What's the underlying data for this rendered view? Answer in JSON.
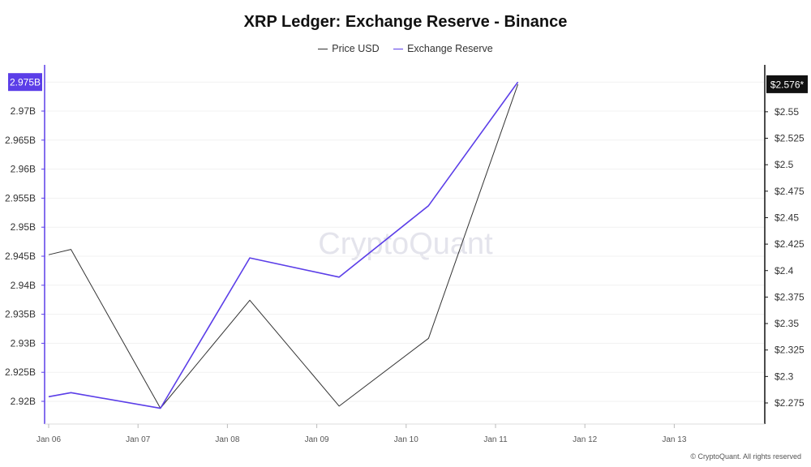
{
  "chart_data": {
    "type": "line",
    "title": "XRP Ledger: Exchange Reserve - Binance",
    "x": [
      "Jan 06",
      "Jan 07",
      "Jan 08",
      "Jan 09",
      "Jan 10",
      "Jan 11",
      "Jan 12",
      "Jan 13"
    ],
    "series": [
      {
        "name": "Price USD",
        "axis": "right",
        "color": "#333333",
        "points": [
          {
            "x": "2025-01-06 00:00",
            "y": 2.415
          },
          {
            "x": "2025-01-06 06:00",
            "y": 2.42
          },
          {
            "x": "2025-01-07 06:00",
            "y": 2.27
          },
          {
            "x": "2025-01-08 06:00",
            "y": 2.372
          },
          {
            "x": "2025-01-09 06:00",
            "y": 2.272
          },
          {
            "x": "2025-01-10 06:00",
            "y": 2.336
          },
          {
            "x": "2025-01-11 06:00",
            "y": 2.576
          }
        ]
      },
      {
        "name": "Exchange Reserve",
        "axis": "left",
        "color": "#5b3ee8",
        "points": [
          {
            "x": "2025-01-06 00:00",
            "y": 2.9208
          },
          {
            "x": "2025-01-06 06:00",
            "y": 2.9215
          },
          {
            "x": "2025-01-07 06:00",
            "y": 2.9188
          },
          {
            "x": "2025-01-08 06:00",
            "y": 2.9447
          },
          {
            "x": "2025-01-09 06:00",
            "y": 2.9414
          },
          {
            "x": "2025-01-10 06:00",
            "y": 2.9537
          },
          {
            "x": "2025-01-11 06:00",
            "y": 2.975
          }
        ]
      }
    ],
    "y_left": {
      "unit": "B",
      "ticks": [
        "2.92B",
        "2.925B",
        "2.93B",
        "2.935B",
        "2.94B",
        "2.945B",
        "2.95B",
        "2.955B",
        "2.96B",
        "2.965B",
        "2.97B",
        "2.975B"
      ],
      "tick_values": [
        2.92,
        2.925,
        2.93,
        2.935,
        2.94,
        2.945,
        2.95,
        2.955,
        2.96,
        2.965,
        2.97,
        2.975
      ],
      "current_label": "2.975B",
      "color": "#5b3ee8"
    },
    "y_right": {
      "ticks": [
        "$2.275",
        "$2.3",
        "$2.325",
        "$2.35",
        "$2.375",
        "$2.4",
        "$2.425",
        "$2.45",
        "$2.475",
        "$2.5",
        "$2.525",
        "$2.55"
      ],
      "tick_values": [
        2.275,
        2.3,
        2.325,
        2.35,
        2.375,
        2.4,
        2.425,
        2.45,
        2.475,
        2.5,
        2.525,
        2.55
      ],
      "current_label": "$2.576*",
      "color": "#111111"
    },
    "grid": true,
    "legend_position": "top-center"
  },
  "watermark": "CryptoQuant",
  "copyright": "© CryptoQuant. All rights reserved"
}
